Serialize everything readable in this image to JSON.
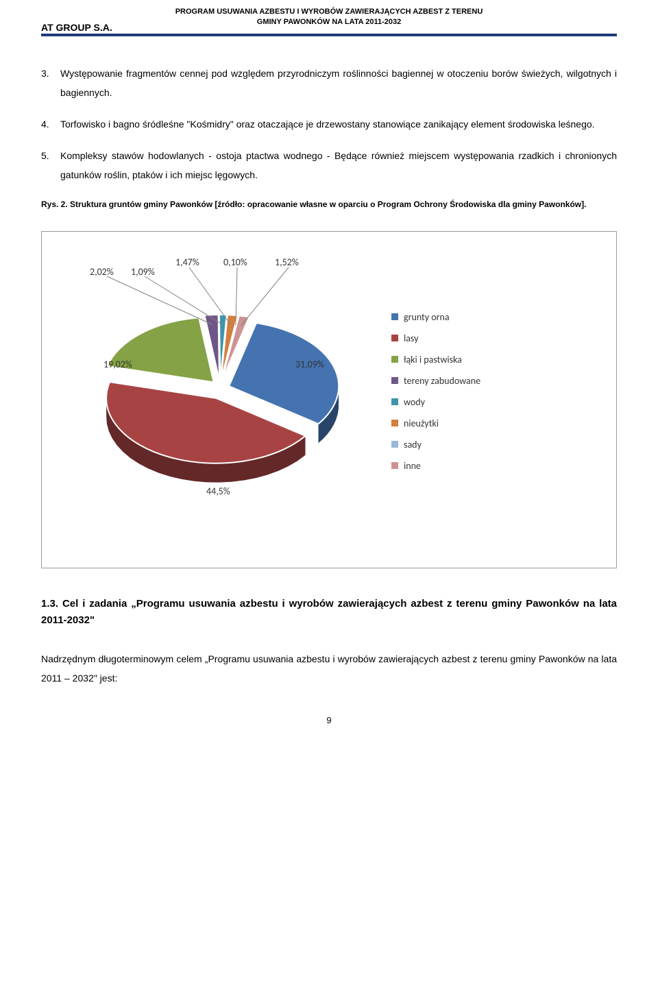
{
  "header": {
    "program_line1": "PROGRAM USUWANIA AZBESTU I WYROBÓW ZAWIERAJĄCYCH AZBEST Z TERENU",
    "program_line2": "GMINY PAWONKÓW NA LATA 2011-2032",
    "company": "AT GROUP S.A."
  },
  "list": {
    "items": [
      {
        "num": "3.",
        "text": "Występowanie fragmentów cennej pod względem przyrodniczym roślinności bagiennej w otoczeniu borów świeżych, wilgotnych i bagiennych."
      },
      {
        "num": "4.",
        "text": "Torfowisko i bagno śródleśne \"Kośmidry\" oraz otaczające je drzewostany stanowiące zanikający element środowiska leśnego."
      },
      {
        "num": "5.",
        "text": "Kompleksy stawów hodowlanych - ostoja ptactwa wodnego - Będące również miejscem występowania rzadkich i chronionych gatunków roślin, ptaków i ich miejsc lęgowych."
      }
    ]
  },
  "caption": "Rys. 2. Struktura gruntów gminy Pawonków [źródło: opracowanie własne w oparciu o Program Ochrony Środowiska dla gminy Pawonków].",
  "chart": {
    "type": "pie-3d-exploded",
    "background_color": "#ffffff",
    "border_color": "#999999",
    "label_fontsize": 14,
    "label_color": "#404040",
    "slices": [
      {
        "label": "grunty orna",
        "value": 31.09,
        "color": "#4473b0",
        "pct": "31,09%"
      },
      {
        "label": "lasy",
        "value": 44.5,
        "color": "#a84344",
        "pct": "44,5%"
      },
      {
        "label": "łąki i pastwiska",
        "value": 19.02,
        "color": "#85a346",
        "pct": "19,02%"
      },
      {
        "label": "tereny zabudowane",
        "value": 2.02,
        "color": "#6f5688",
        "pct": "2,02%"
      },
      {
        "label": "wody",
        "value": 1.09,
        "color": "#3e95ac",
        "pct": "1,09%"
      },
      {
        "label": "nieużytki",
        "value": 1.47,
        "color": "#d27f3f",
        "pct": "1,47%"
      },
      {
        "label": "sady",
        "value": 0.1,
        "color": "#9bb8d9",
        "pct": "0,10%"
      },
      {
        "label": "inne",
        "value": 1.52,
        "color": "#ce9394",
        "pct": "1,52%"
      }
    ],
    "legend_sq_size": 10
  },
  "section_title": "1.3. Cel i zadania „Programu usuwania azbestu i wyrobów zawierających azbest z terenu gminy Pawonków na lata 2011-2032\"",
  "body_para": "Nadrzędnym długoterminowym celem „Programu usuwania azbestu i wyrobów zawierających azbest z terenu gminy Pawonków na lata 2011 – 2032\" jest:",
  "page_num": "9"
}
